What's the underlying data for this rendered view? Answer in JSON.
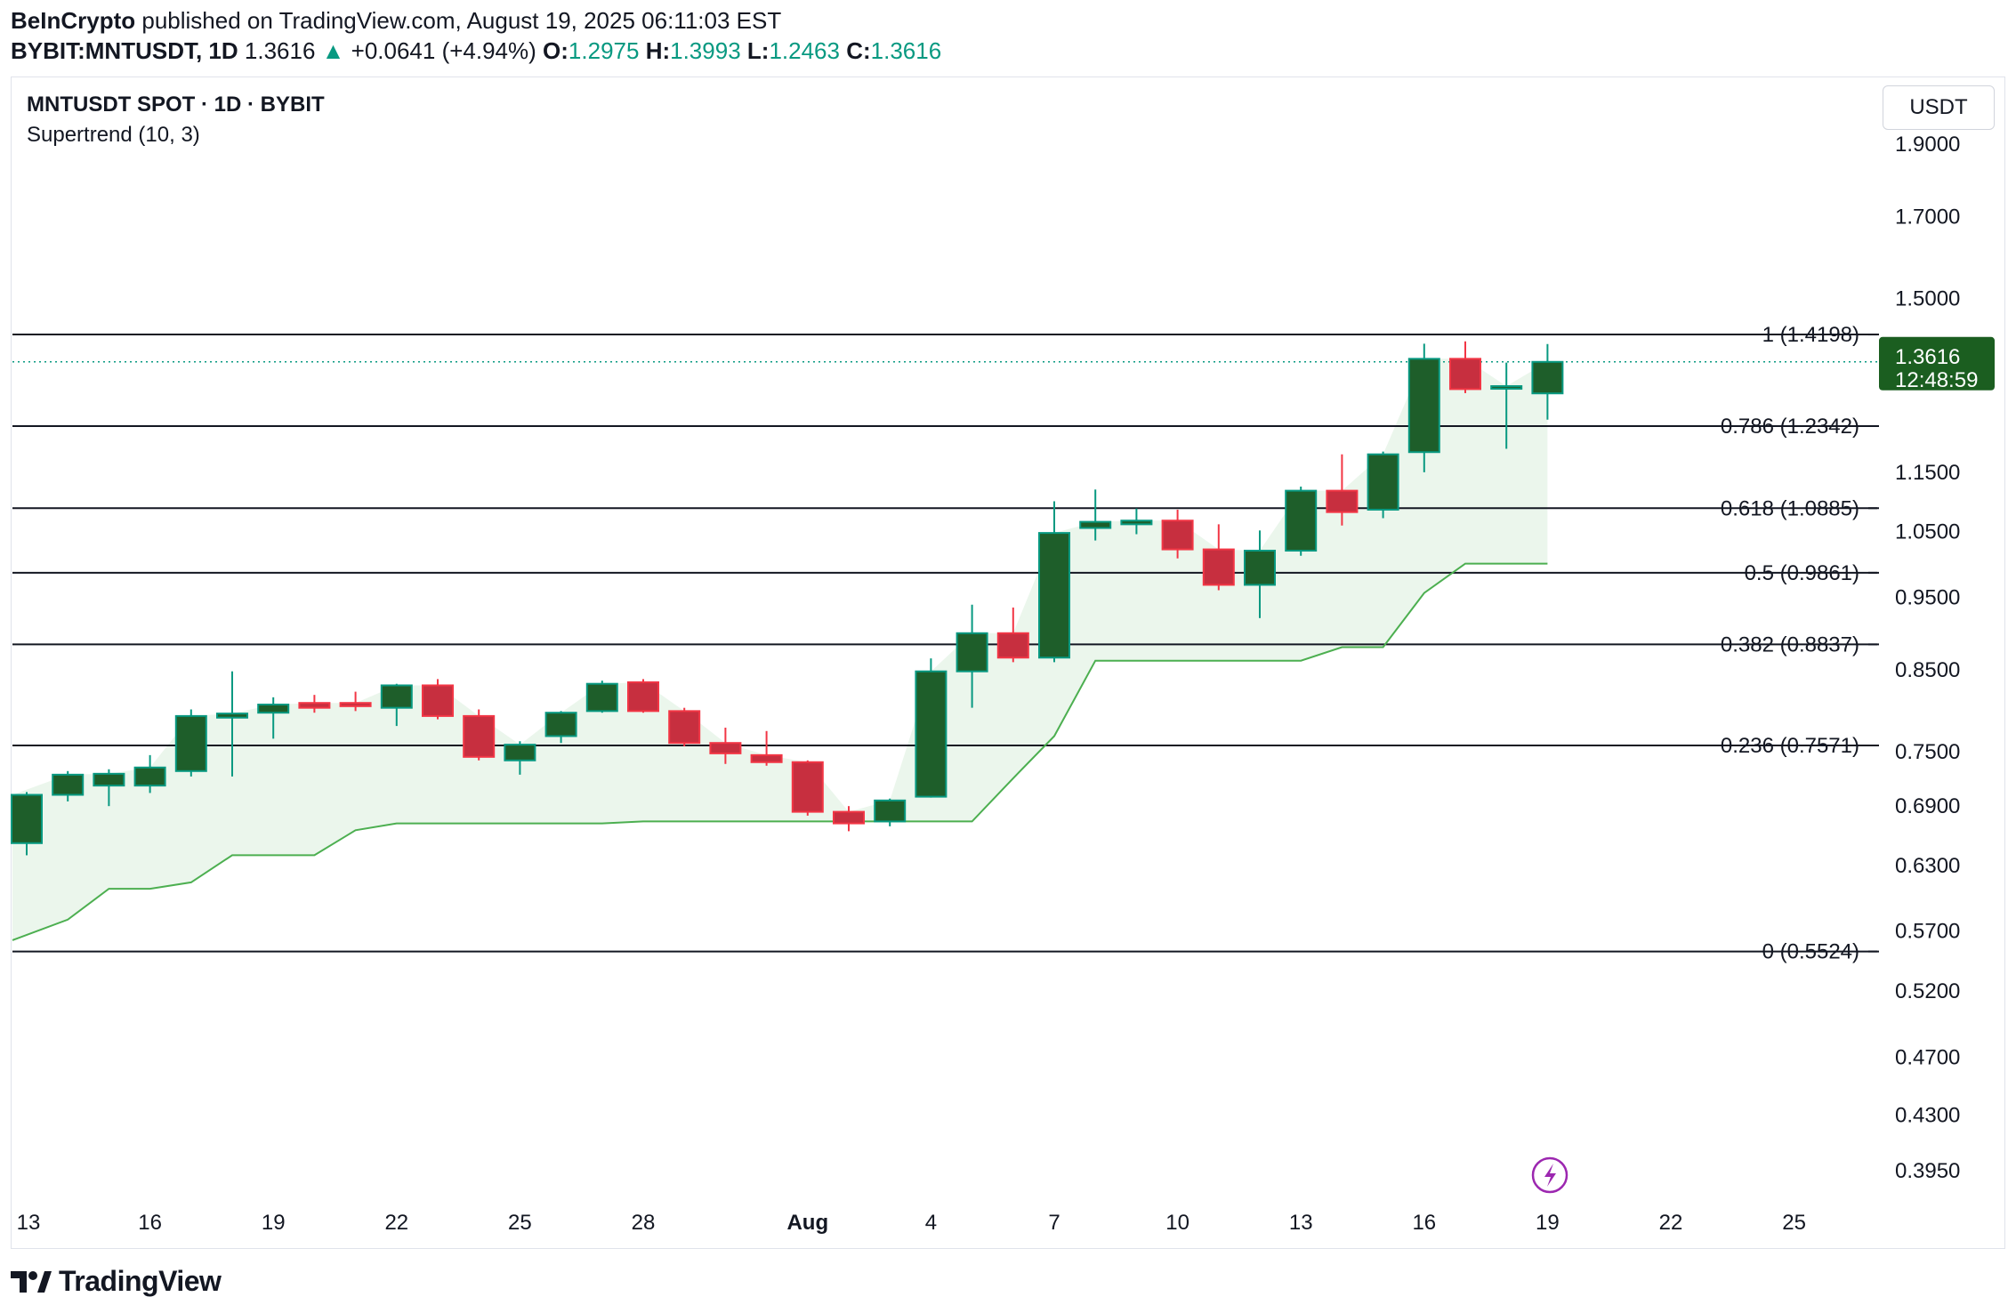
{
  "header": {
    "publisher": "BeInCrypto",
    "published_text": "published on TradingView.com, August 19, 2025 06:11:03 EST",
    "symbol": "BYBIT:MNTUSDT, 1D",
    "last": "1.3616",
    "change": "+0.0641 (+4.94%)",
    "o_label": "O:",
    "o": "1.2975",
    "h_label": "H:",
    "h": "1.3993",
    "l_label": "L:",
    "l": "1.2463",
    "c_label": "C:",
    "c": "1.3616"
  },
  "chart_title": "MNTUSDT SPOT · 1D · BYBIT",
  "indicator_label": "Supertrend (10, 3)",
  "unit_button": "USDT",
  "brand": "TradingView",
  "price_label": {
    "value": "1.3616",
    "countdown": "12:48:59"
  },
  "colors": {
    "up": "#1e5e2a",
    "down": "#c72f3f",
    "wick_up": "#089981",
    "wick_down": "#f23645",
    "supertrend": "#4caf50",
    "supertrend_fill": "#e8f5e9",
    "price_tag": "#1b5e20",
    "fib_line": "#131722"
  },
  "chart_data": {
    "type": "candlestick",
    "title": "MNTUSDT SPOT · 1D · BYBIT",
    "ylabel": "USDT",
    "yscale": "log",
    "ylim": [
      0.37,
      2.0
    ],
    "y_ticks": [
      "1.9000",
      "1.7000",
      "1.5000",
      "1.1500",
      "1.0500",
      "0.9500",
      "0.8500",
      "0.7500",
      "0.6900",
      "0.6300",
      "0.5700",
      "0.5200",
      "0.4700",
      "0.4300",
      "0.3950"
    ],
    "x_ticks": [
      {
        "day": 0,
        "label": "13"
      },
      {
        "day": 3,
        "label": "16"
      },
      {
        "day": 6,
        "label": "19"
      },
      {
        "day": 9,
        "label": "22"
      },
      {
        "day": 12,
        "label": "25"
      },
      {
        "day": 15,
        "label": "28"
      },
      {
        "day": 19,
        "label": "Aug"
      },
      {
        "day": 22,
        "label": "4"
      },
      {
        "day": 25,
        "label": "7"
      },
      {
        "day": 28,
        "label": "10"
      },
      {
        "day": 31,
        "label": "13"
      },
      {
        "day": 34,
        "label": "16"
      },
      {
        "day": 37,
        "label": "19"
      },
      {
        "day": 40,
        "label": "22"
      },
      {
        "day": 43,
        "label": "25"
      }
    ],
    "candles": [
      {
        "o": 0.652,
        "h": 0.705,
        "l": 0.64,
        "c": 0.702
      },
      {
        "o": 0.702,
        "h": 0.728,
        "l": 0.695,
        "c": 0.724
      },
      {
        "o": 0.712,
        "h": 0.73,
        "l": 0.69,
        "c": 0.725
      },
      {
        "o": 0.712,
        "h": 0.746,
        "l": 0.704,
        "c": 0.732
      },
      {
        "o": 0.728,
        "h": 0.8,
        "l": 0.722,
        "c": 0.792
      },
      {
        "o": 0.79,
        "h": 0.848,
        "l": 0.722,
        "c": 0.795
      },
      {
        "o": 0.796,
        "h": 0.815,
        "l": 0.765,
        "c": 0.806
      },
      {
        "o": 0.808,
        "h": 0.818,
        "l": 0.796,
        "c": 0.802
      },
      {
        "o": 0.808,
        "h": 0.822,
        "l": 0.798,
        "c": 0.804
      },
      {
        "o": 0.802,
        "h": 0.832,
        "l": 0.78,
        "c": 0.83
      },
      {
        "o": 0.83,
        "h": 0.838,
        "l": 0.788,
        "c": 0.792
      },
      {
        "o": 0.792,
        "h": 0.8,
        "l": 0.74,
        "c": 0.744
      },
      {
        "o": 0.74,
        "h": 0.762,
        "l": 0.724,
        "c": 0.758
      },
      {
        "o": 0.768,
        "h": 0.798,
        "l": 0.76,
        "c": 0.796
      },
      {
        "o": 0.798,
        "h": 0.836,
        "l": 0.796,
        "c": 0.832
      },
      {
        "o": 0.834,
        "h": 0.838,
        "l": 0.796,
        "c": 0.798
      },
      {
        "o": 0.798,
        "h": 0.802,
        "l": 0.756,
        "c": 0.76
      },
      {
        "o": 0.76,
        "h": 0.778,
        "l": 0.736,
        "c": 0.748
      },
      {
        "o": 0.746,
        "h": 0.774,
        "l": 0.734,
        "c": 0.738
      },
      {
        "o": 0.738,
        "h": 0.74,
        "l": 0.68,
        "c": 0.684
      },
      {
        "o": 0.684,
        "h": 0.69,
        "l": 0.664,
        "c": 0.672
      },
      {
        "o": 0.674,
        "h": 0.698,
        "l": 0.669,
        "c": 0.696
      },
      {
        "o": 0.7,
        "h": 0.865,
        "l": 0.699,
        "c": 0.848
      },
      {
        "o": 0.848,
        "h": 0.939,
        "l": 0.802,
        "c": 0.899
      },
      {
        "o": 0.899,
        "h": 0.935,
        "l": 0.86,
        "c": 0.866
      },
      {
        "o": 0.866,
        "h": 1.1,
        "l": 0.86,
        "c": 1.048
      },
      {
        "o": 1.056,
        "h": 1.12,
        "l": 1.036,
        "c": 1.066
      },
      {
        "o": 1.062,
        "h": 1.088,
        "l": 1.046,
        "c": 1.068
      },
      {
        "o": 1.068,
        "h": 1.086,
        "l": 1.008,
        "c": 1.022
      },
      {
        "o": 1.022,
        "h": 1.062,
        "l": 0.96,
        "c": 0.968
      },
      {
        "o": 0.968,
        "h": 1.052,
        "l": 0.92,
        "c": 1.02
      },
      {
        "o": 1.02,
        "h": 1.125,
        "l": 1.012,
        "c": 1.118
      },
      {
        "o": 1.118,
        "h": 1.182,
        "l": 1.06,
        "c": 1.082
      },
      {
        "o": 1.086,
        "h": 1.187,
        "l": 1.072,
        "c": 1.182
      },
      {
        "o": 1.186,
        "h": 1.4,
        "l": 1.15,
        "c": 1.368
      },
      {
        "o": 1.368,
        "h": 1.405,
        "l": 1.298,
        "c": 1.306
      },
      {
        "o": 1.31,
        "h": 1.36,
        "l": 1.192,
        "c": 1.312
      },
      {
        "o": 1.2975,
        "h": 1.3993,
        "l": 1.2463,
        "c": 1.3616
      }
    ],
    "supertrend": [
      0.562,
      0.58,
      0.608,
      0.608,
      0.614,
      0.64,
      0.64,
      0.64,
      0.665,
      0.672,
      0.672,
      0.672,
      0.672,
      0.672,
      0.672,
      0.674,
      0.674,
      0.674,
      0.674,
      0.674,
      0.674,
      0.674,
      0.674,
      0.674,
      0.72,
      0.768,
      0.862,
      0.862,
      0.862,
      0.862,
      0.862,
      0.862,
      0.88,
      0.88,
      0.956,
      1.0,
      1.0,
      1.0
    ],
    "fibonacci": [
      {
        "level": "1",
        "price": 1.4198,
        "label": "1 (1.4198)"
      },
      {
        "level": "0.786",
        "price": 1.2342,
        "label": "0.786 (1.2342)"
      },
      {
        "level": "0.618",
        "price": 1.0885,
        "label": "0.618 (1.0885)"
      },
      {
        "level": "0.5",
        "price": 0.9861,
        "label": "0.5 (0.9861)"
      },
      {
        "level": "0.382",
        "price": 0.8837,
        "label": "0.382 (0.8837)"
      },
      {
        "level": "0.236",
        "price": 0.7571,
        "label": "0.236 (0.7571)"
      },
      {
        "level": "0",
        "price": 0.5524,
        "label": "0 (0.5524)"
      }
    ],
    "last_price": 1.3616
  }
}
